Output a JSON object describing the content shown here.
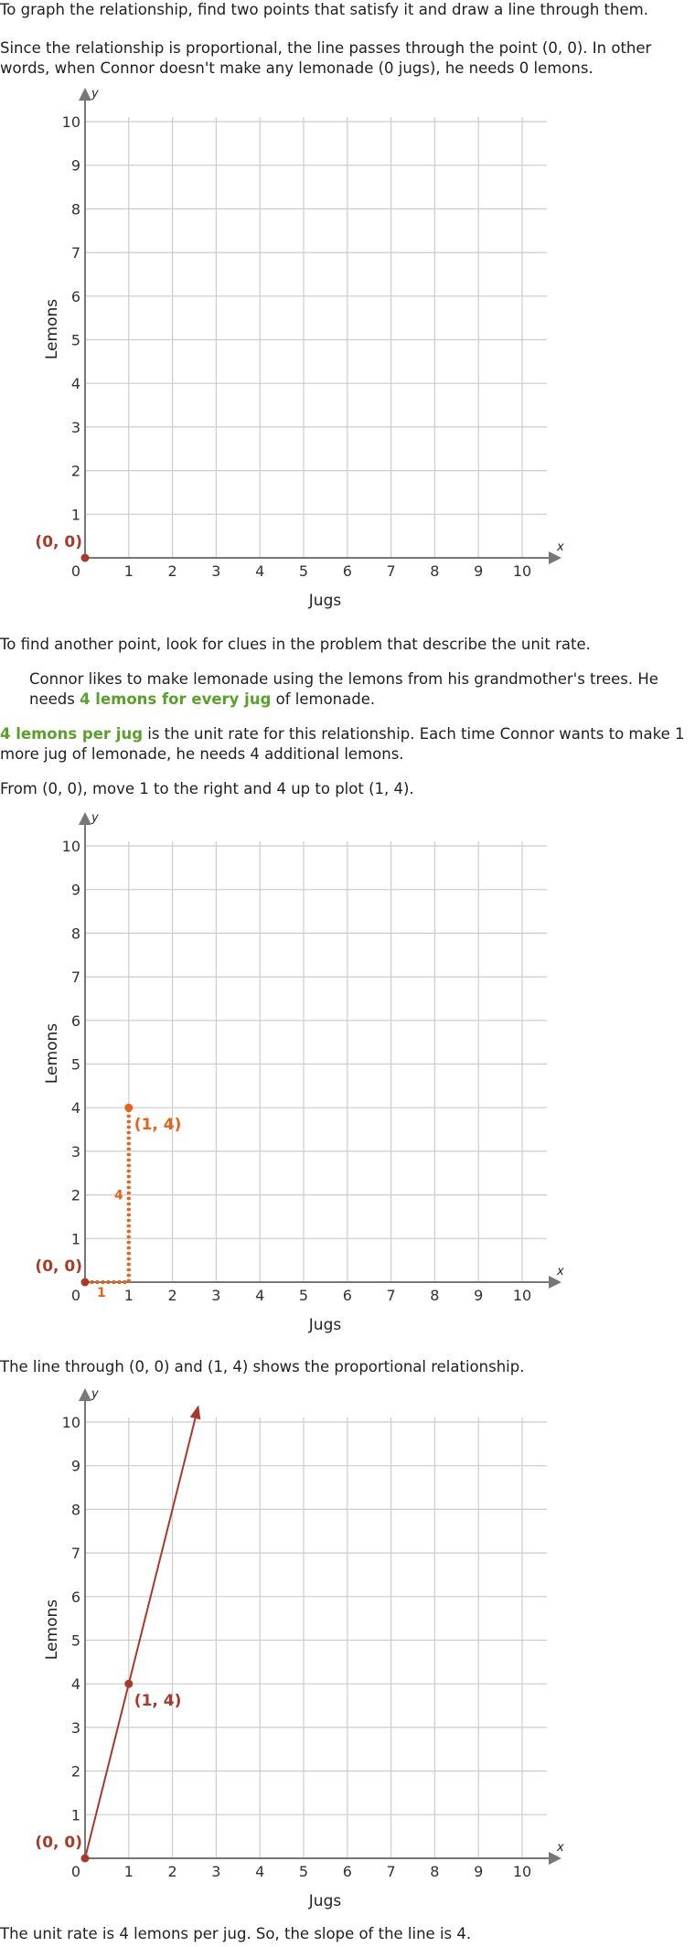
{
  "intro": "To graph the relationship, find two points that satisfy it and draw a line through them.",
  "proportional_note": "Since the relationship is proportional, the line passes through the point (0, 0). In other words, when Connor doesn't make any lemonade (0 jugs), he needs 0 lemons.",
  "find_point": "To find another point, look for clues in the problem that describe the unit rate.",
  "quote": {
    "part1": "Connor likes to make lemonade using the lemons from his grandmother's trees. He needs ",
    "highlight": "4 lemons for every jug",
    "part2": " of lemonade."
  },
  "unit_rate": {
    "highlight": "4 lemons per jug",
    "rest": " is the unit rate for this relationship. Each time Connor wants to make 1 more jug of lemonade, he needs 4 additional lemons."
  },
  "move_text": "From (0, 0), move 1 to the right and 4 up to plot (1, 4).",
  "line_text": "The line through (0, 0) and (1, 4) shows the proportional relationship.",
  "conclusion": "The unit rate is 4 lemons per jug. So, the slope of the line is 4.",
  "colors": {
    "accent_green": "#5aa02c",
    "point_brown": "#a83a2a",
    "step_orange": "#e8621a",
    "grid": "#cccccc",
    "axis": "#777777"
  },
  "chart_data": [
    {
      "type": "scatter",
      "xlabel": "Jugs",
      "ylabel": "Lemons",
      "x_axis_letter": "x",
      "y_axis_letter": "y",
      "xlim": [
        0,
        10
      ],
      "ylim": [
        0,
        10
      ],
      "grid": true,
      "x_ticks": [
        "0",
        "1",
        "2",
        "3",
        "4",
        "5",
        "6",
        "7",
        "8",
        "9",
        "10"
      ],
      "y_ticks": [
        "1",
        "2",
        "3",
        "4",
        "5",
        "6",
        "7",
        "8",
        "9",
        "10"
      ],
      "points": [
        {
          "x": 0,
          "y": 0,
          "label": "(0, 0)"
        }
      ]
    },
    {
      "type": "scatter",
      "xlabel": "Jugs",
      "ylabel": "Lemons",
      "x_axis_letter": "x",
      "y_axis_letter": "y",
      "xlim": [
        0,
        10
      ],
      "ylim": [
        0,
        10
      ],
      "grid": true,
      "x_ticks": [
        "0",
        "1",
        "2",
        "3",
        "4",
        "5",
        "6",
        "7",
        "8",
        "9",
        "10"
      ],
      "y_ticks": [
        "1",
        "2",
        "3",
        "4",
        "5",
        "6",
        "7",
        "8",
        "9",
        "10"
      ],
      "points": [
        {
          "x": 0,
          "y": 0,
          "label": "(0, 0)"
        },
        {
          "x": 1,
          "y": 4,
          "label": "(1, 4)"
        }
      ],
      "steps": {
        "run": 1,
        "rise": 4,
        "run_label": "1",
        "rise_label": "4"
      }
    },
    {
      "type": "line",
      "xlabel": "Jugs",
      "ylabel": "Lemons",
      "x_axis_letter": "x",
      "y_axis_letter": "y",
      "xlim": [
        0,
        10
      ],
      "ylim": [
        0,
        10
      ],
      "grid": true,
      "x_ticks": [
        "0",
        "1",
        "2",
        "3",
        "4",
        "5",
        "6",
        "7",
        "8",
        "9",
        "10"
      ],
      "y_ticks": [
        "1",
        "2",
        "3",
        "4",
        "5",
        "6",
        "7",
        "8",
        "9",
        "10"
      ],
      "points": [
        {
          "x": 0,
          "y": 0,
          "label": "(0, 0)"
        },
        {
          "x": 1,
          "y": 4,
          "label": "(1, 4)"
        }
      ],
      "line": {
        "slope": 4,
        "intercept": 0
      }
    }
  ]
}
